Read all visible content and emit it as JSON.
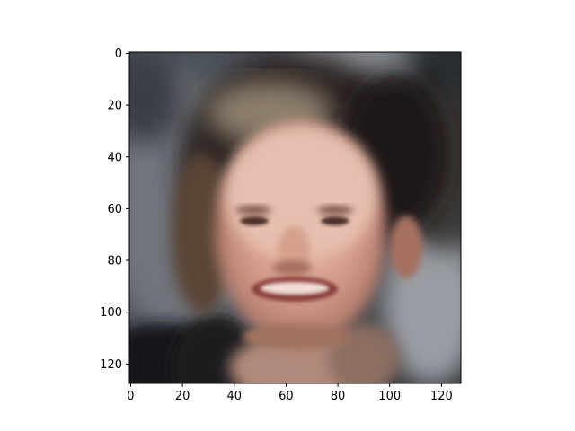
{
  "chart_data": {
    "type": "image",
    "content": "reconstructed face image",
    "x_ticks": [
      "0",
      "20",
      "40",
      "60",
      "80",
      "100",
      "120"
    ],
    "y_ticks": [
      "0",
      "20",
      "40",
      "60",
      "80",
      "100",
      "120"
    ],
    "x_values": [
      0,
      20,
      40,
      60,
      80,
      100,
      120
    ],
    "y_values": [
      0,
      20,
      40,
      60,
      80,
      100,
      120
    ],
    "xlim": [
      -0.5,
      127.5
    ],
    "ylim": [
      127.5,
      -0.5
    ],
    "image_size": [
      128,
      128
    ],
    "grid": false,
    "legend": "none"
  }
}
